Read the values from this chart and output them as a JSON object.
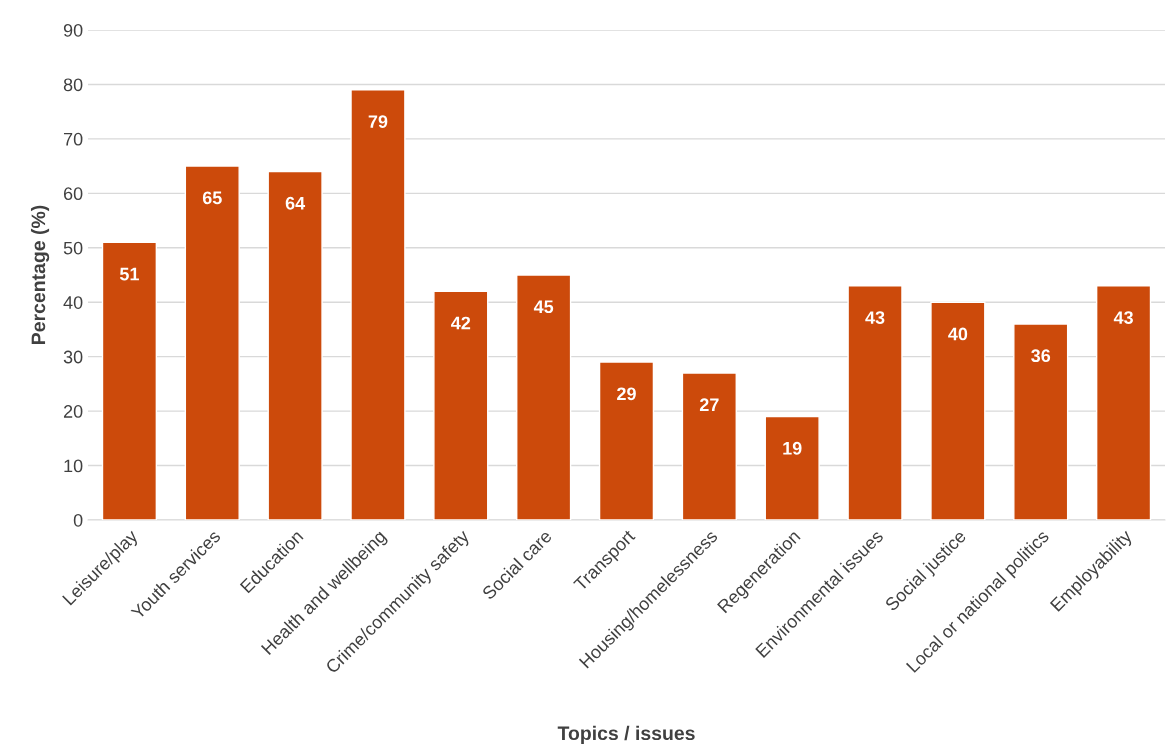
{
  "chart_data": {
    "type": "bar",
    "xlabel": "Topics / issues",
    "ylabel": "Percentage (%)",
    "categories": [
      "Leisure/play",
      "Youth services",
      "Education",
      "Health and wellbeing",
      "Crime/community safety",
      "Social care",
      "Transport",
      "Housing/homelessness",
      "Regeneration",
      "Environmental issues",
      "Social justice",
      "Local or national politics",
      "Employability"
    ],
    "values": [
      51,
      65,
      64,
      79,
      42,
      45,
      29,
      27,
      19,
      43,
      40,
      36,
      43
    ],
    "color": "#cc4a0b",
    "ylim": [
      0,
      90
    ],
    "yticks": [
      0,
      10,
      20,
      30,
      40,
      50,
      60,
      70,
      80,
      90
    ],
    "grid": "y",
    "data_labels": true
  }
}
